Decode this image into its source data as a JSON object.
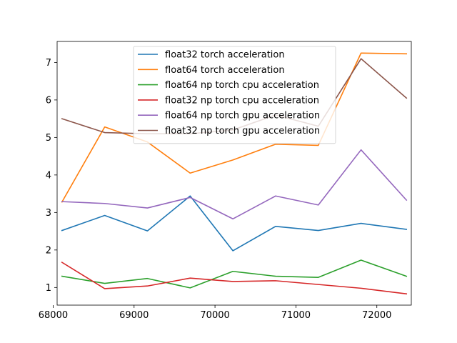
{
  "chart_data": {
    "type": "line",
    "title": "",
    "xlabel": "",
    "ylabel": "",
    "x": [
      68109,
      68637,
      69165,
      69693,
      70221,
      70749,
      71277,
      71805,
      72366
    ],
    "xlim": [
      68049,
      72426
    ],
    "ylim": [
      0.53,
      7.56
    ],
    "xticks": [
      68000,
      69000,
      70000,
      71000,
      72000
    ],
    "yticks": [
      1,
      2,
      3,
      4,
      5,
      6,
      7
    ],
    "grid": false,
    "legend_position": "top-center",
    "series": [
      {
        "name": "float32 torch acceleration",
        "color": "#1f77b4",
        "values": [
          2.52,
          2.92,
          2.51,
          3.44,
          1.98,
          2.63,
          2.52,
          2.71,
          2.55
        ]
      },
      {
        "name": "float64 torch acceleration",
        "color": "#ff7f0e",
        "values": [
          3.28,
          5.28,
          4.88,
          4.05,
          4.4,
          4.82,
          4.79,
          7.25,
          7.23
        ]
      },
      {
        "name": "float64 np torch cpu acceleration",
        "color": "#2ca02c",
        "values": [
          1.3,
          1.11,
          1.24,
          0.99,
          1.43,
          1.3,
          1.27,
          1.73,
          1.3
        ]
      },
      {
        "name": "float32 np torch cpu acceleration",
        "color": "#d62728",
        "values": [
          1.67,
          0.97,
          1.04,
          1.25,
          1.16,
          1.18,
          1.08,
          0.98,
          0.83
        ]
      },
      {
        "name": "float64 np torch gpu acceleration",
        "color": "#9467bd",
        "values": [
          3.29,
          3.24,
          3.12,
          3.4,
          2.83,
          3.44,
          3.2,
          4.67,
          3.33
        ]
      },
      {
        "name": "float32 np torch gpu acceleration",
        "color": "#8c564b",
        "values": [
          5.5,
          5.13,
          5.1,
          5.1,
          5.2,
          5.6,
          5.3,
          7.1,
          6.05
        ]
      }
    ]
  }
}
